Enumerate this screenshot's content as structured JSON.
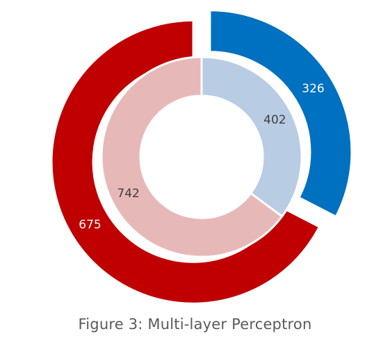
{
  "caption": "Figure 3: Multi-layer Perceptron",
  "chart_data": {
    "type": "pie",
    "variant": "nested-donut",
    "rings": [
      {
        "ring": "outer",
        "values": [
          326,
          675
        ],
        "colors": [
          "#0070C0",
          "#C00000"
        ],
        "labels": [
          "326",
          "675"
        ],
        "label_color": "#ffffff",
        "exploded": true
      },
      {
        "ring": "inner",
        "values": [
          402,
          742
        ],
        "colors": [
          "#B8CCE4",
          "#E6B9B8"
        ],
        "labels": [
          "402",
          "742"
        ],
        "label_color": "#404040",
        "exploded": false
      }
    ]
  }
}
